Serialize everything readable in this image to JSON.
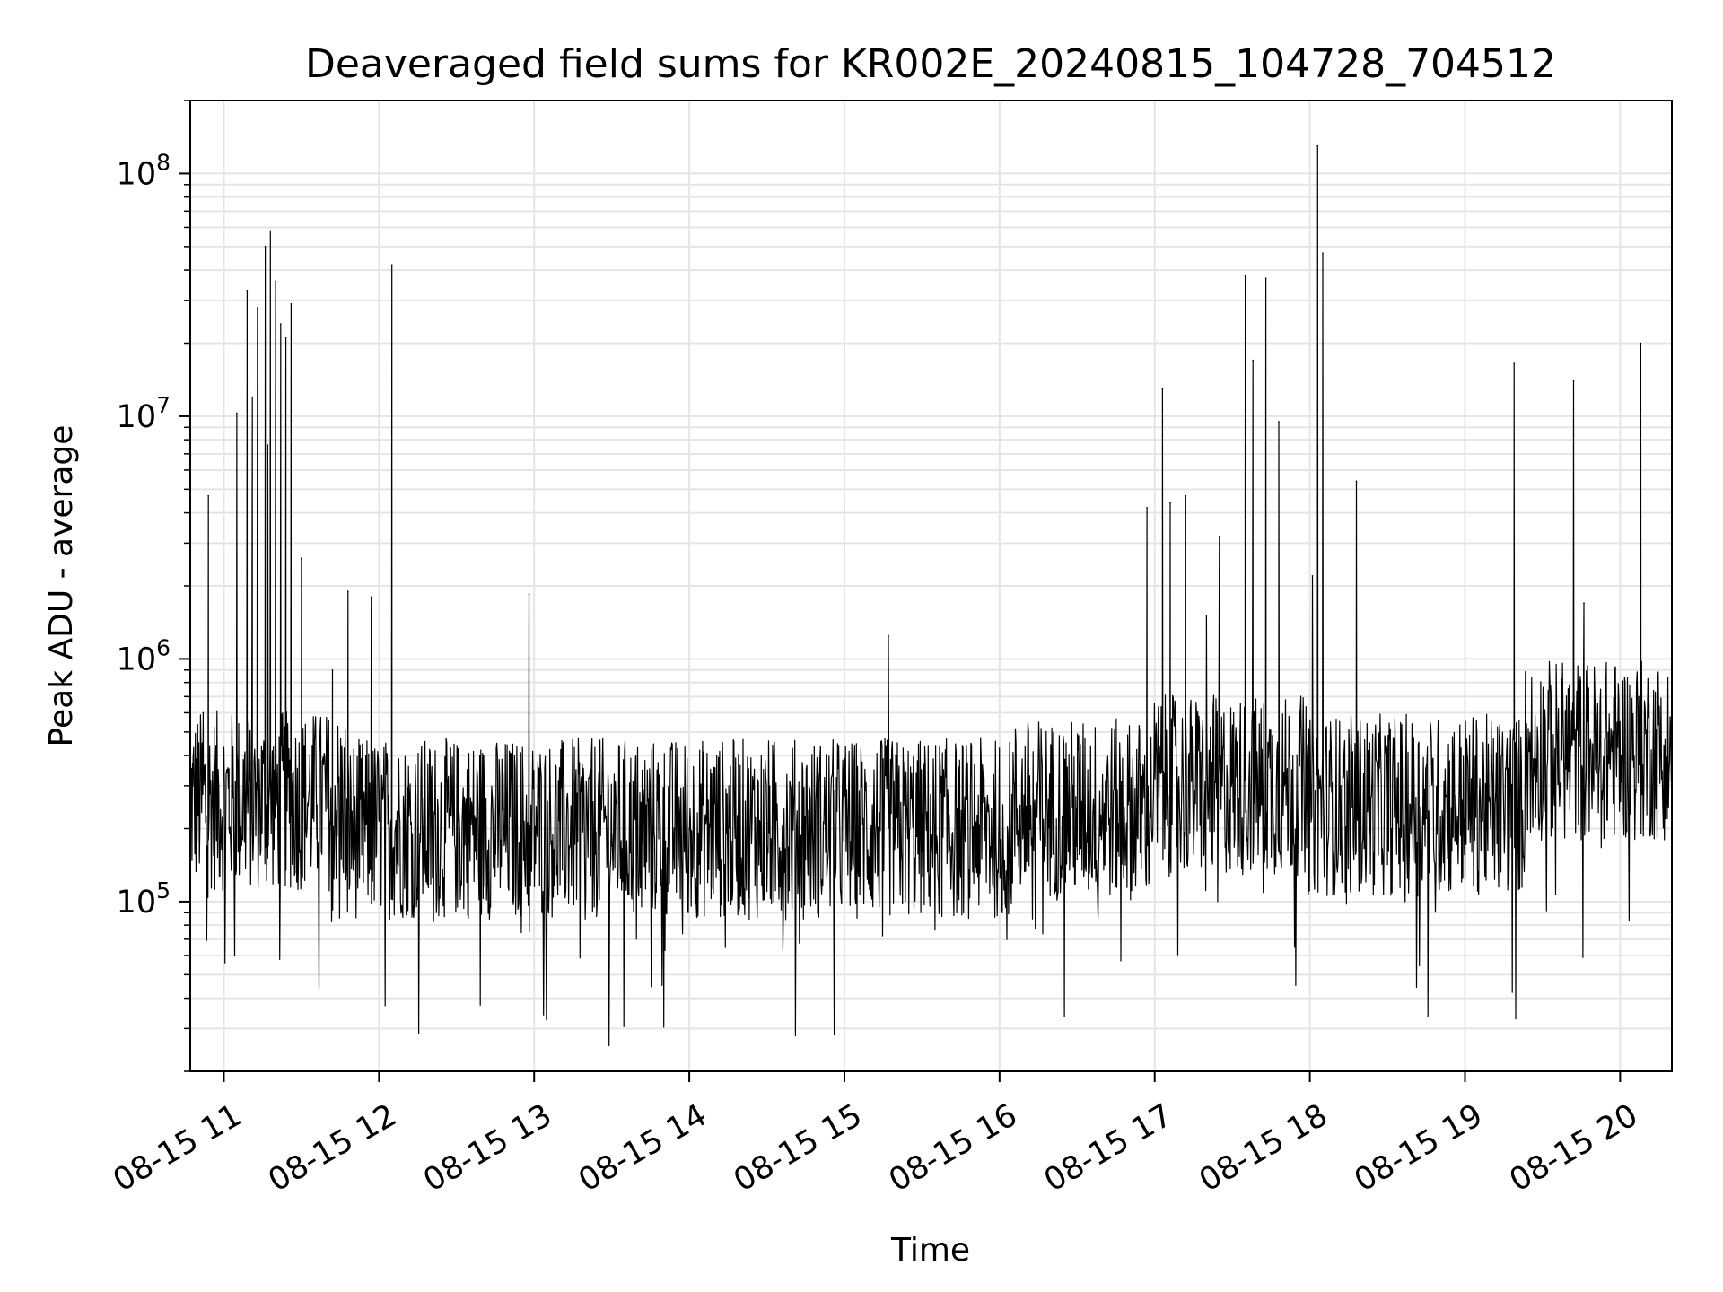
{
  "chart_data": {
    "type": "line",
    "title": "Deaveraged field sums for KR002E_20240815_104728_704512",
    "xlabel": "Time",
    "ylabel": "Peak ADU - average",
    "yscale": "log",
    "ylim": [
      20000,
      200000000
    ],
    "xlim": [
      "2024-08-15 10:47",
      "2024-08-15 20:20"
    ],
    "grid": true,
    "line_color": "#000000",
    "grid_color": "#e5e5e5",
    "x_ticks": [
      {
        "value": "2024-08-15 11:00",
        "label": "08-15 11"
      },
      {
        "value": "2024-08-15 12:00",
        "label": "08-15 12"
      },
      {
        "value": "2024-08-15 13:00",
        "label": "08-15 13"
      },
      {
        "value": "2024-08-15 14:00",
        "label": "08-15 14"
      },
      {
        "value": "2024-08-15 15:00",
        "label": "08-15 15"
      },
      {
        "value": "2024-08-15 16:00",
        "label": "08-15 16"
      },
      {
        "value": "2024-08-15 17:00",
        "label": "08-15 17"
      },
      {
        "value": "2024-08-15 18:00",
        "label": "08-15 18"
      },
      {
        "value": "2024-08-15 19:00",
        "label": "08-15 19"
      },
      {
        "value": "2024-08-15 20:00",
        "label": "08-15 20"
      }
    ],
    "y_ticks": [
      {
        "value": 100000,
        "base": "10",
        "exp": "5"
      },
      {
        "value": 1000000,
        "base": "10",
        "exp": "6"
      },
      {
        "value": 10000000,
        "base": "10",
        "exp": "7"
      },
      {
        "value": 100000000,
        "base": "10",
        "exp": "8"
      }
    ],
    "series": [
      {
        "points": [
          [
            "2024-08-15 10:48",
            300000
          ],
          [
            "2024-08-15 10:52",
            600000
          ],
          [
            "2024-08-15 10:54",
            4700000
          ],
          [
            "2024-08-15 10:58",
            300000
          ],
          [
            "2024-08-15 11:02",
            200000
          ],
          [
            "2024-08-15 11:05",
            10300000
          ],
          [
            "2024-08-15 11:08",
            400000
          ],
          [
            "2024-08-15 11:09",
            33000000
          ],
          [
            "2024-08-15 11:11",
            12000000
          ],
          [
            "2024-08-15 11:13",
            28000000
          ],
          [
            "2024-08-15 11:16",
            50000000
          ],
          [
            "2024-08-15 11:17",
            7600000
          ],
          [
            "2024-08-15 11:18",
            58000000
          ],
          [
            "2024-08-15 11:20",
            36000000
          ],
          [
            "2024-08-15 11:22",
            24000000
          ],
          [
            "2024-08-15 11:24",
            21000000
          ],
          [
            "2024-08-15 11:26",
            29000000
          ],
          [
            "2024-08-15 11:30",
            2600000
          ],
          [
            "2024-08-15 11:36",
            250000
          ],
          [
            "2024-08-15 11:42",
            900000
          ],
          [
            "2024-08-15 11:48",
            1900000
          ],
          [
            "2024-08-15 11:54",
            200000
          ],
          [
            "2024-08-15 11:57",
            1800000
          ],
          [
            "2024-08-15 12:00",
            220000
          ],
          [
            "2024-08-15 12:05",
            42000000
          ],
          [
            "2024-08-15 12:10",
            220000
          ],
          [
            "2024-08-15 12:30",
            200000
          ],
          [
            "2024-08-15 12:45",
            180000
          ],
          [
            "2024-08-15 12:58",
            1850000
          ],
          [
            "2024-08-15 13:05",
            200000
          ],
          [
            "2024-08-15 13:30",
            170000
          ],
          [
            "2024-08-15 14:00",
            200000
          ],
          [
            "2024-08-15 14:30",
            210000
          ],
          [
            "2024-08-15 14:50",
            200000
          ],
          [
            "2024-08-15 15:15",
            220000
          ],
          [
            "2024-08-15 15:17",
            1250000
          ],
          [
            "2024-08-15 15:30",
            230000
          ],
          [
            "2024-08-15 16:00",
            220000
          ],
          [
            "2024-08-15 16:20",
            180000
          ],
          [
            "2024-08-15 16:30",
            150000
          ],
          [
            "2024-08-15 16:50",
            260000
          ],
          [
            "2024-08-15 16:57",
            4200000
          ],
          [
            "2024-08-15 17:03",
            13000000
          ],
          [
            "2024-08-15 17:06",
            4400000
          ],
          [
            "2024-08-15 17:12",
            4700000
          ],
          [
            "2024-08-15 17:20",
            1500000
          ],
          [
            "2024-08-15 17:25",
            3200000
          ],
          [
            "2024-08-15 17:30",
            500000
          ],
          [
            "2024-08-15 17:35",
            38000000
          ],
          [
            "2024-08-15 17:38",
            17000000
          ],
          [
            "2024-08-15 17:43",
            37000000
          ],
          [
            "2024-08-15 17:48",
            9500000
          ],
          [
            "2024-08-15 17:55",
            300000
          ],
          [
            "2024-08-15 18:01",
            2200000
          ],
          [
            "2024-08-15 18:03",
            130000000
          ],
          [
            "2024-08-15 18:05",
            47000000
          ],
          [
            "2024-08-15 18:12",
            300000
          ],
          [
            "2024-08-15 18:18",
            5400000
          ],
          [
            "2024-08-15 18:30",
            250000
          ],
          [
            "2024-08-15 18:45",
            220000
          ],
          [
            "2024-08-15 19:00",
            220000
          ],
          [
            "2024-08-15 19:10",
            250000
          ],
          [
            "2024-08-15 19:19",
            16500000
          ],
          [
            "2024-08-15 19:30",
            300000
          ],
          [
            "2024-08-15 19:42",
            14000000
          ],
          [
            "2024-08-15 19:46",
            1700000
          ],
          [
            "2024-08-15 19:55",
            400000
          ],
          [
            "2024-08-15 20:08",
            20000000
          ],
          [
            "2024-08-15 20:20",
            450000
          ]
        ]
      }
    ]
  }
}
